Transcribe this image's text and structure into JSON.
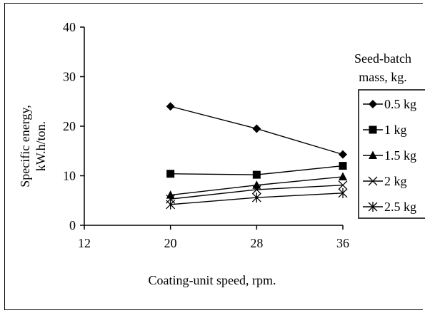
{
  "chart_data": {
    "type": "line",
    "title": "",
    "xlabel": "Coating-unit speed, rpm.",
    "ylabel_lines": [
      "Specific energy,",
      "kW.h/ton."
    ],
    "xlim": [
      12,
      36
    ],
    "ylim": [
      0,
      40
    ],
    "x_ticks": [
      "12",
      "20",
      "28",
      "36"
    ],
    "y_ticks": [
      "0",
      "10",
      "20",
      "30",
      "40"
    ],
    "legend_title_lines": [
      "Seed-batch",
      "mass, kg."
    ],
    "legend_position": "right",
    "x": [
      20,
      28,
      36
    ],
    "series": [
      {
        "name": "0.5 kg",
        "marker": "diamond",
        "values": [
          24.0,
          19.5,
          14.3
        ]
      },
      {
        "name": "1 kg",
        "marker": "square",
        "values": [
          10.4,
          10.2,
          12.0
        ]
      },
      {
        "name": "1.5 kg",
        "marker": "triangle",
        "values": [
          6.1,
          8.1,
          9.8
        ]
      },
      {
        "name": "2 kg",
        "marker": "x",
        "values": [
          5.3,
          7.2,
          8.1
        ]
      },
      {
        "name": "2.5 kg",
        "marker": "star",
        "values": [
          4.2,
          5.6,
          6.5
        ]
      }
    ],
    "grid": false,
    "colors": {
      "line": "#000000",
      "marker": "#000000",
      "background": "#ffffff"
    }
  }
}
